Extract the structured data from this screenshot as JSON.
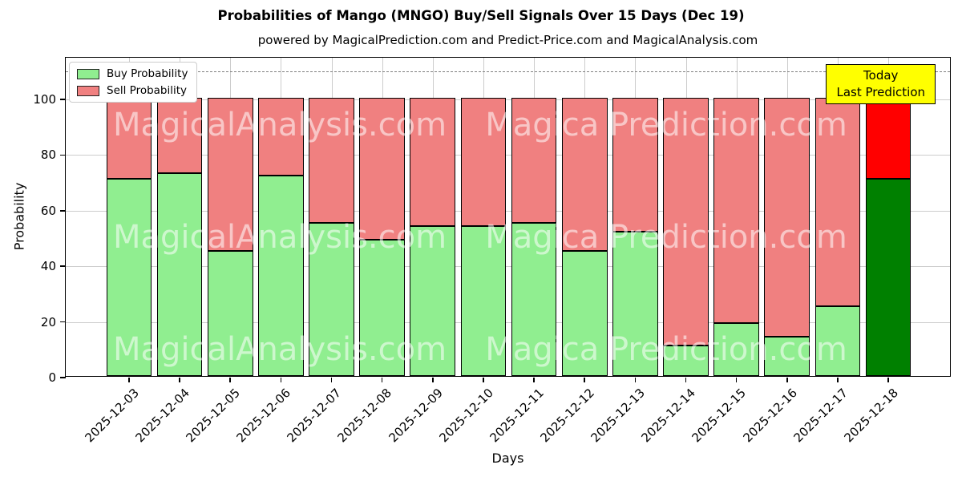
{
  "title": "Probabilities of Mango (MNGO) Buy/Sell Signals Over 15 Days (Dec 19)",
  "subtitle": "powered by MagicalPrediction.com and Predict-Price.com and MagicalAnalysis.com",
  "annotation": {
    "lines": [
      "Today",
      "Last Prediction"
    ],
    "bg_color": "#FFFF00"
  },
  "legend": [
    {
      "label": "Buy Probability",
      "color": "#90EE90"
    },
    {
      "label": "Sell Probability",
      "color": "#F08080"
    }
  ],
  "watermarks": {
    "left": "MagicalAnalysis.com",
    "right": "Magica Prediction.com"
  },
  "chart_data": {
    "type": "bar",
    "stacked": true,
    "title": "Probabilities of Mango (MNGO) Buy/Sell Signals Over 15 Days (Dec 19)",
    "xlabel": "Days",
    "ylabel": "Probability",
    "categories": [
      "2025-12-03",
      "2025-12-04",
      "2025-12-05",
      "2025-12-06",
      "2025-12-07",
      "2025-12-08",
      "2025-12-09",
      "2025-12-10",
      "2025-12-11",
      "2025-12-12",
      "2025-12-13",
      "2025-12-14",
      "2025-12-15",
      "2025-12-16",
      "2025-12-17",
      "2025-12-18"
    ],
    "series": [
      {
        "name": "Buy Probability",
        "color": "#90EE90",
        "values": [
          71,
          73,
          45,
          72,
          55,
          49,
          54,
          54,
          55,
          45,
          52,
          11,
          19,
          14,
          25,
          71
        ]
      },
      {
        "name": "Sell Probability",
        "color": "#F08080",
        "values": [
          29,
          27,
          55,
          28,
          45,
          51,
          46,
          46,
          45,
          55,
          48,
          89,
          81,
          86,
          75,
          29
        ]
      }
    ],
    "highlight_index": 15,
    "highlight_colors": {
      "buy": "#008000",
      "sell": "#FF0000"
    },
    "yticks": [
      0,
      20,
      40,
      60,
      80,
      100
    ],
    "ylim": [
      0,
      115
    ],
    "dashed_line_y": 110,
    "grid": true,
    "legend_position": "upper left",
    "bar_edge_color": "#000000"
  }
}
